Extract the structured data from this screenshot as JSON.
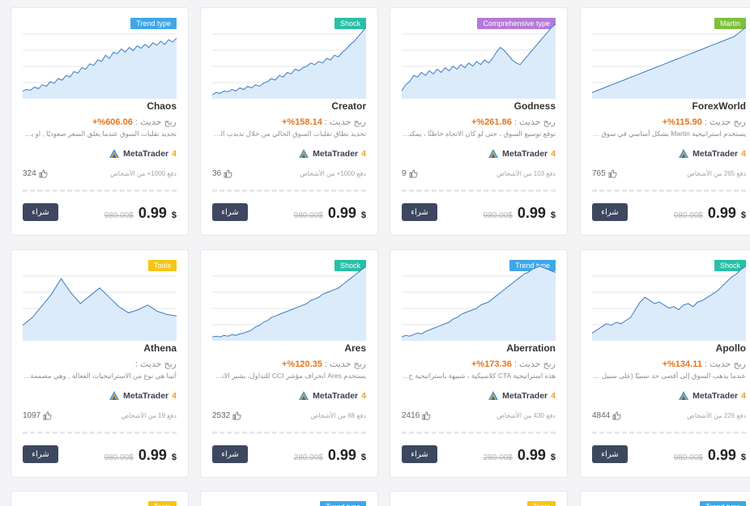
{
  "colors": {
    "trend": "#3fa7e6",
    "shock": "#29c0a5",
    "comprehensive": "#b57ad6",
    "martin": "#7ec03c",
    "tools": "#f5c518",
    "line": "#3b7cc0",
    "fill": "#dcebfa"
  },
  "profit_label": "ربح حديث :",
  "buy_label": "شراء",
  "platform": {
    "name": "MetaTrader",
    "version": "4",
    "icon": "metatrader-logo-icon"
  },
  "cards": [
    {
      "badge": "Trend type",
      "badge_color": "trend",
      "name": "Chaos",
      "profit": "606.06%+",
      "desc": "تحديد تقلبات السوق عندما يغلق السعر صعوديًا , او يخ...",
      "likes": "324",
      "users": "دفع 1000+ من الأشخاص",
      "old_price": "980.00$",
      "price": "0.99",
      "currency": "$",
      "series": [
        10,
        12,
        11,
        15,
        13,
        18,
        16,
        22,
        20,
        26,
        24,
        30,
        28,
        35,
        33,
        40,
        38,
        45,
        43,
        50,
        48,
        56,
        52,
        60,
        58,
        64,
        60,
        66,
        62,
        68,
        65,
        70,
        66,
        72,
        69,
        74,
        70,
        76,
        73,
        78
      ]
    },
    {
      "badge": "Shock",
      "badge_color": "shock",
      "name": "Creator",
      "profit": "158.14%+",
      "desc": "تحديد نطاق تقلبات السوق الحالي من خلال تذبذب السو...",
      "likes": "36",
      "users": "دفع 1000+ من الأشخاص",
      "old_price": "980.00$",
      "price": "0.99",
      "currency": "$",
      "series": [
        5,
        8,
        7,
        10,
        9,
        12,
        10,
        14,
        12,
        16,
        14,
        18,
        16,
        20,
        22,
        26,
        24,
        30,
        28,
        34,
        32,
        38,
        36,
        40,
        42,
        46,
        44,
        48,
        46,
        52,
        50,
        56,
        54,
        60,
        64,
        70,
        74,
        80,
        86,
        92
      ]
    },
    {
      "badge": "Comprehensive type",
      "badge_color": "comprehensive",
      "name": "Godness",
      "profit": "261.86%+",
      "desc": "توقع توسيع السوق ، حتى لو كان الاتجاه خاطئًا ، يمكنك ...",
      "likes": "9",
      "users": "دفع 103 من الأشخاص",
      "old_price": "980.00$",
      "price": "0.99",
      "currency": "$",
      "series": [
        10,
        18,
        22,
        30,
        28,
        34,
        30,
        36,
        32,
        38,
        34,
        40,
        36,
        42,
        38,
        44,
        40,
        46,
        42,
        48,
        44,
        50,
        46,
        52,
        60,
        66,
        62,
        56,
        50,
        46,
        44,
        50,
        56,
        62,
        68,
        74,
        80,
        86,
        92,
        96
      ]
    },
    {
      "badge": "Martin",
      "badge_color": "martin",
      "name": "ForexWorld",
      "profit": "115.90%+",
      "desc": "يستخدم استراتيجية Martin بشكل أساسي في سوق X...",
      "likes": "765",
      "users": "دفع 265 من الأشخاص",
      "old_price": "980.00$",
      "price": "0.99",
      "currency": "$",
      "series": [
        8,
        10,
        12,
        14,
        16,
        18,
        20,
        22,
        24,
        26,
        28,
        30,
        32,
        34,
        36,
        38,
        40,
        42,
        44,
        46,
        48,
        50,
        52,
        54,
        56,
        58,
        60,
        62,
        64,
        66,
        68,
        70,
        72,
        74,
        76,
        78,
        80,
        84,
        88,
        92
      ]
    },
    {
      "badge": "Tools",
      "badge_color": "tools",
      "name": "Athena",
      "profit": "",
      "desc": "أثينا هي نوع من الاستراتيجيات الفعالة , وهي مصممة ...",
      "likes": "1097",
      "users": "دفع 19 من الأشخاص",
      "old_price": "980.00$",
      "price": "0.99",
      "currency": "$",
      "series": [
        20,
        30,
        45,
        60,
        80,
        62,
        48,
        58,
        68,
        56,
        44,
        36,
        40,
        46,
        38,
        34,
        32
      ]
    },
    {
      "badge": "Shock",
      "badge_color": "shock",
      "name": "Ares",
      "profit": "120.35%+",
      "desc": "يستخدم Ares انحراف مؤشر CCI للتداول، يشير الانحر...",
      "likes": "2532",
      "users": "دفع 68 من الأشخاص",
      "old_price": "280.00$",
      "price": "0.99",
      "currency": "$",
      "series": [
        5,
        6,
        5,
        7,
        6,
        8,
        7,
        9,
        10,
        12,
        14,
        18,
        20,
        24,
        26,
        30,
        32,
        34,
        36,
        38,
        40,
        42,
        44,
        46,
        48,
        52,
        54,
        56,
        60,
        62,
        64,
        66,
        68,
        72,
        76,
        80,
        84,
        88,
        92,
        96
      ]
    },
    {
      "badge": "Trend type",
      "badge_color": "trend",
      "name": "Aberration",
      "profit": "173.36%+",
      "desc": "هذه استراتيجية CTA كلاسيكية ، شبيهة باستراتيجية خ...",
      "likes": "2416",
      "users": "دفع 430 من الأشخاص",
      "old_price": "280.00$",
      "price": "0.99",
      "currency": "$",
      "series": [
        5,
        7,
        6,
        8,
        10,
        9,
        12,
        14,
        16,
        18,
        20,
        22,
        24,
        28,
        30,
        34,
        36,
        38,
        40,
        42,
        46,
        48,
        50,
        54,
        58,
        62,
        66,
        70,
        74,
        78,
        82,
        86,
        88,
        92,
        94,
        96,
        94,
        92,
        90,
        88
      ]
    },
    {
      "badge": "Shock",
      "badge_color": "shock",
      "name": "Apollo",
      "profit": "134.11%+",
      "desc": "عندما يذهب السوق إلى أقصى حد نسبيًا (على سبيل الم...",
      "likes": "4844",
      "users": "دفع 226 من الأشخاص",
      "old_price": "980.00$",
      "price": "0.99",
      "currency": "$",
      "series": [
        10,
        14,
        18,
        22,
        20,
        24,
        22,
        26,
        30,
        40,
        50,
        56,
        52,
        48,
        50,
        46,
        42,
        44,
        40,
        46,
        48,
        44,
        50,
        52,
        56,
        60,
        64,
        70,
        76,
        82,
        86,
        92,
        96
      ]
    },
    {
      "badge": "Tools",
      "badge_color": "tools",
      "partial": true
    },
    {
      "badge": "Trend type",
      "badge_color": "trend",
      "partial": true
    },
    {
      "badge": "Tools",
      "badge_color": "tools",
      "partial": true
    },
    {
      "badge": "Trend type",
      "badge_color": "trend",
      "partial": true
    }
  ]
}
